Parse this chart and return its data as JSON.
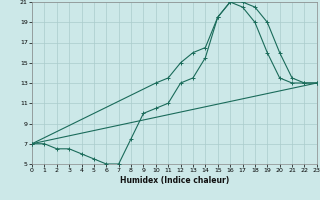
{
  "xlabel": "Humidex (Indice chaleur)",
  "xlim": [
    0,
    23
  ],
  "ylim": [
    5,
    21
  ],
  "yticks": [
    5,
    7,
    9,
    11,
    13,
    15,
    17,
    19,
    21
  ],
  "xticks": [
    0,
    1,
    2,
    3,
    4,
    5,
    6,
    7,
    8,
    9,
    10,
    11,
    12,
    13,
    14,
    15,
    16,
    17,
    18,
    19,
    20,
    21,
    22,
    23
  ],
  "bg_color": "#cce8e8",
  "grid_color": "#aacccc",
  "line_color": "#1a6b5a",
  "line1_x": [
    0,
    1,
    2,
    3,
    4,
    5,
    6,
    7,
    8,
    9,
    10,
    11,
    12,
    13,
    14,
    15,
    16,
    17,
    18,
    19,
    20,
    21,
    22,
    23
  ],
  "line1_y": [
    7,
    7,
    6.5,
    6.5,
    6,
    5.5,
    5,
    5,
    7.5,
    10,
    10.5,
    11,
    13,
    13.5,
    15.5,
    19.5,
    21,
    21,
    20.5,
    19,
    16,
    13.5,
    13,
    13
  ],
  "line2_x": [
    0,
    10,
    11,
    12,
    13,
    14,
    15,
    16,
    17,
    18,
    19,
    20,
    21,
    22,
    23
  ],
  "line2_y": [
    7,
    13,
    13.5,
    15,
    16,
    16.5,
    19.5,
    21,
    20.5,
    19,
    16,
    13.5,
    13,
    13,
    13
  ],
  "line3_x": [
    0,
    23
  ],
  "line3_y": [
    7,
    13
  ]
}
